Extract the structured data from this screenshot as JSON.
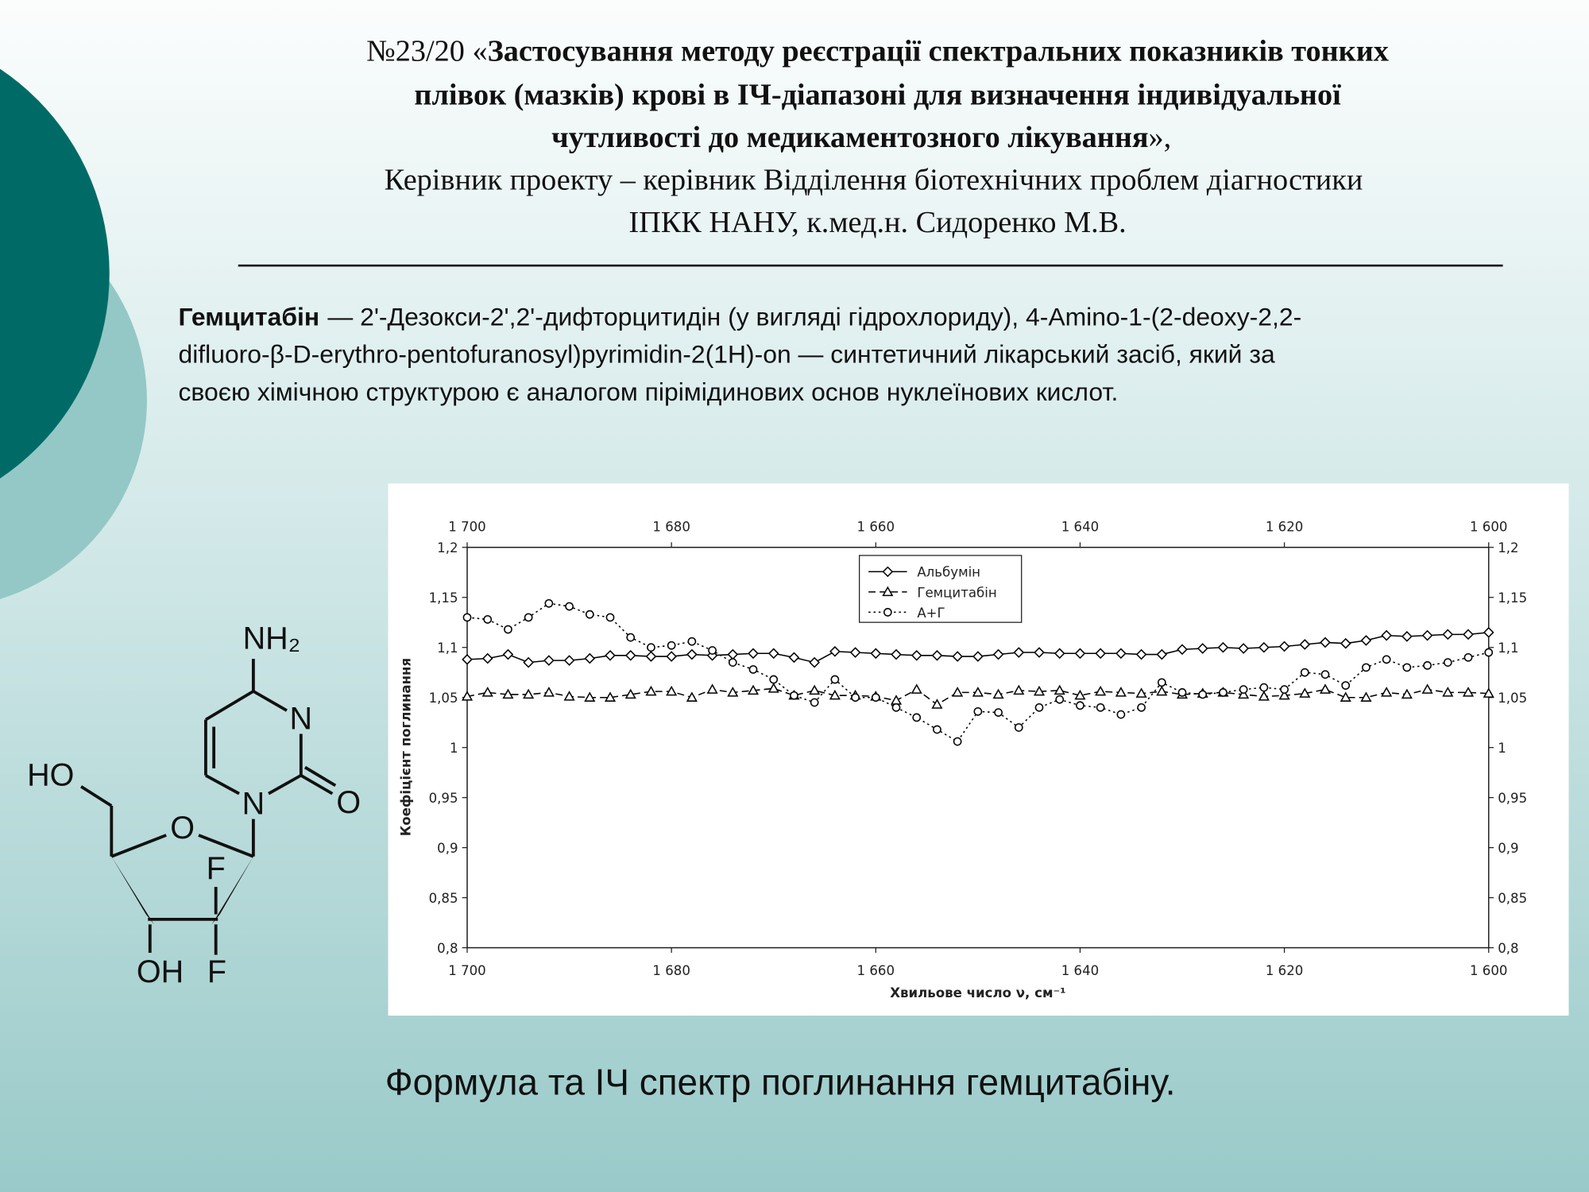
{
  "header": {
    "title_prefix": "№23/20 «",
    "title_lines": [
      "Застосування методу реєстрації спектральних показників тонких",
      "плівок (мазків) крові в ІЧ-діапазоні для визначення індивідуальної",
      "чутливості до медикаментозного лікування"
    ],
    "title_suffix": "»,",
    "supervisor_lines": [
      "Керівник проекту – керівник Відділення біотехнічних проблем діагностики",
      "ІПКК НАНУ, к.мед.н. Сидоренко М.В."
    ]
  },
  "paragraph": {
    "term": "Гемцитабін",
    "lines": [
      "— 2'-Дезокси-2',2'-дифторцитидін (у вигляді гідрохлориду), 4-Amino-1-(2-deoxy-2,2-",
      "difluoro-β-D-erythro-pentofuranosyl)pyrimidin-2(1H)-on — синтетичний лікарський засіб, який за",
      "своєю хімічною структурою є аналогом пірімідинових основ нуклеїнових кислот."
    ]
  },
  "molecule": {
    "labels": [
      "NH₂",
      "N",
      "N",
      "O",
      "HO",
      "O",
      "F",
      "OH",
      "F"
    ]
  },
  "chart_data": {
    "type": "line",
    "y_label": "Коефіцієнт поглинання",
    "x_label": "Хвильове число ν, см⁻¹",
    "x": [
      1700,
      1698,
      1696,
      1694,
      1692,
      1690,
      1688,
      1686,
      1684,
      1682,
      1680,
      1678,
      1676,
      1674,
      1672,
      1670,
      1668,
      1666,
      1664,
      1662,
      1660,
      1658,
      1656,
      1654,
      1652,
      1650,
      1648,
      1646,
      1644,
      1642,
      1640,
      1638,
      1636,
      1634,
      1632,
      1630,
      1628,
      1626,
      1624,
      1622,
      1620,
      1618,
      1616,
      1614,
      1612,
      1610,
      1608,
      1606,
      1604,
      1602,
      1600
    ],
    "series": [
      {
        "name": "Альбумін",
        "color": "#000000",
        "marker": "diamond",
        "line_style": "solid",
        "values": [
          1.088,
          1.089,
          1.093,
          1.085,
          1.087,
          1.087,
          1.089,
          1.092,
          1.092,
          1.091,
          1.091,
          1.093,
          1.092,
          1.093,
          1.094,
          1.094,
          1.09,
          1.085,
          1.096,
          1.095,
          1.094,
          1.093,
          1.092,
          1.092,
          1.091,
          1.091,
          1.093,
          1.095,
          1.095,
          1.094,
          1.094,
          1.094,
          1.094,
          1.093,
          1.093,
          1.098,
          1.099,
          1.1,
          1.099,
          1.1,
          1.101,
          1.103,
          1.105,
          1.104,
          1.107,
          1.112,
          1.111,
          1.112,
          1.113,
          1.113,
          1.115
        ]
      },
      {
        "name": "Гемцитабін",
        "color": "#000000",
        "marker": "triangle",
        "line_style": "dashed",
        "values": [
          1.051,
          1.055,
          1.053,
          1.053,
          1.055,
          1.051,
          1.05,
          1.05,
          1.053,
          1.056,
          1.056,
          1.05,
          1.058,
          1.055,
          1.057,
          1.059,
          1.052,
          1.057,
          1.052,
          1.052,
          1.051,
          1.047,
          1.058,
          1.043,
          1.055,
          1.055,
          1.053,
          1.057,
          1.056,
          1.057,
          1.052,
          1.056,
          1.055,
          1.054,
          1.056,
          1.053,
          1.054,
          1.055,
          1.053,
          1.051,
          1.052,
          1.054,
          1.058,
          1.05,
          1.05,
          1.055,
          1.053,
          1.058,
          1.055,
          1.055,
          1.054
        ]
      },
      {
        "name": "А+Г",
        "color": "#000000",
        "marker": "circle",
        "line_style": "dotted",
        "values": [
          1.13,
          1.128,
          1.118,
          1.13,
          1.144,
          1.141,
          1.133,
          1.13,
          1.11,
          1.1,
          1.102,
          1.106,
          1.097,
          1.085,
          1.078,
          1.068,
          1.052,
          1.045,
          1.068,
          1.05,
          1.05,
          1.04,
          1.03,
          1.018,
          1.006,
          1.036,
          1.035,
          1.02,
          1.04,
          1.048,
          1.042,
          1.04,
          1.033,
          1.04,
          1.065,
          1.055,
          1.053,
          1.055,
          1.058,
          1.06,
          1.058,
          1.075,
          1.073,
          1.062,
          1.08,
          1.088,
          1.08,
          1.082,
          1.085,
          1.09,
          1.095
        ]
      }
    ],
    "xlim": [
      1700,
      1600
    ],
    "xticks": [
      {
        "value": 1700,
        "label": "1 700"
      },
      {
        "value": 1680,
        "label": "1 680"
      },
      {
        "value": 1660,
        "label": "1 660"
      },
      {
        "value": 1640,
        "label": "1 640"
      },
      {
        "value": 1620,
        "label": "1 620"
      },
      {
        "value": 1600,
        "label": "1 600"
      }
    ],
    "ylim": [
      0.8,
      1.2
    ],
    "yticks": [
      {
        "value": 0.8,
        "label": "0,8"
      },
      {
        "value": 0.85,
        "label": "0,85"
      },
      {
        "value": 0.9,
        "label": "0,9"
      },
      {
        "value": 0.95,
        "label": "0,95"
      },
      1,
      {
        "value": 1.05,
        "label": "1,05"
      },
      {
        "value": 1.1,
        "label": "1,1"
      },
      {
        "value": 1.15,
        "label": "1,15"
      },
      {
        "value": 1.2,
        "label": "1,2"
      }
    ],
    "mirror_ticks": true,
    "grid": false,
    "legend": "top-center"
  },
  "caption": "Формула та ІЧ спектр поглинання гемцитабіну."
}
